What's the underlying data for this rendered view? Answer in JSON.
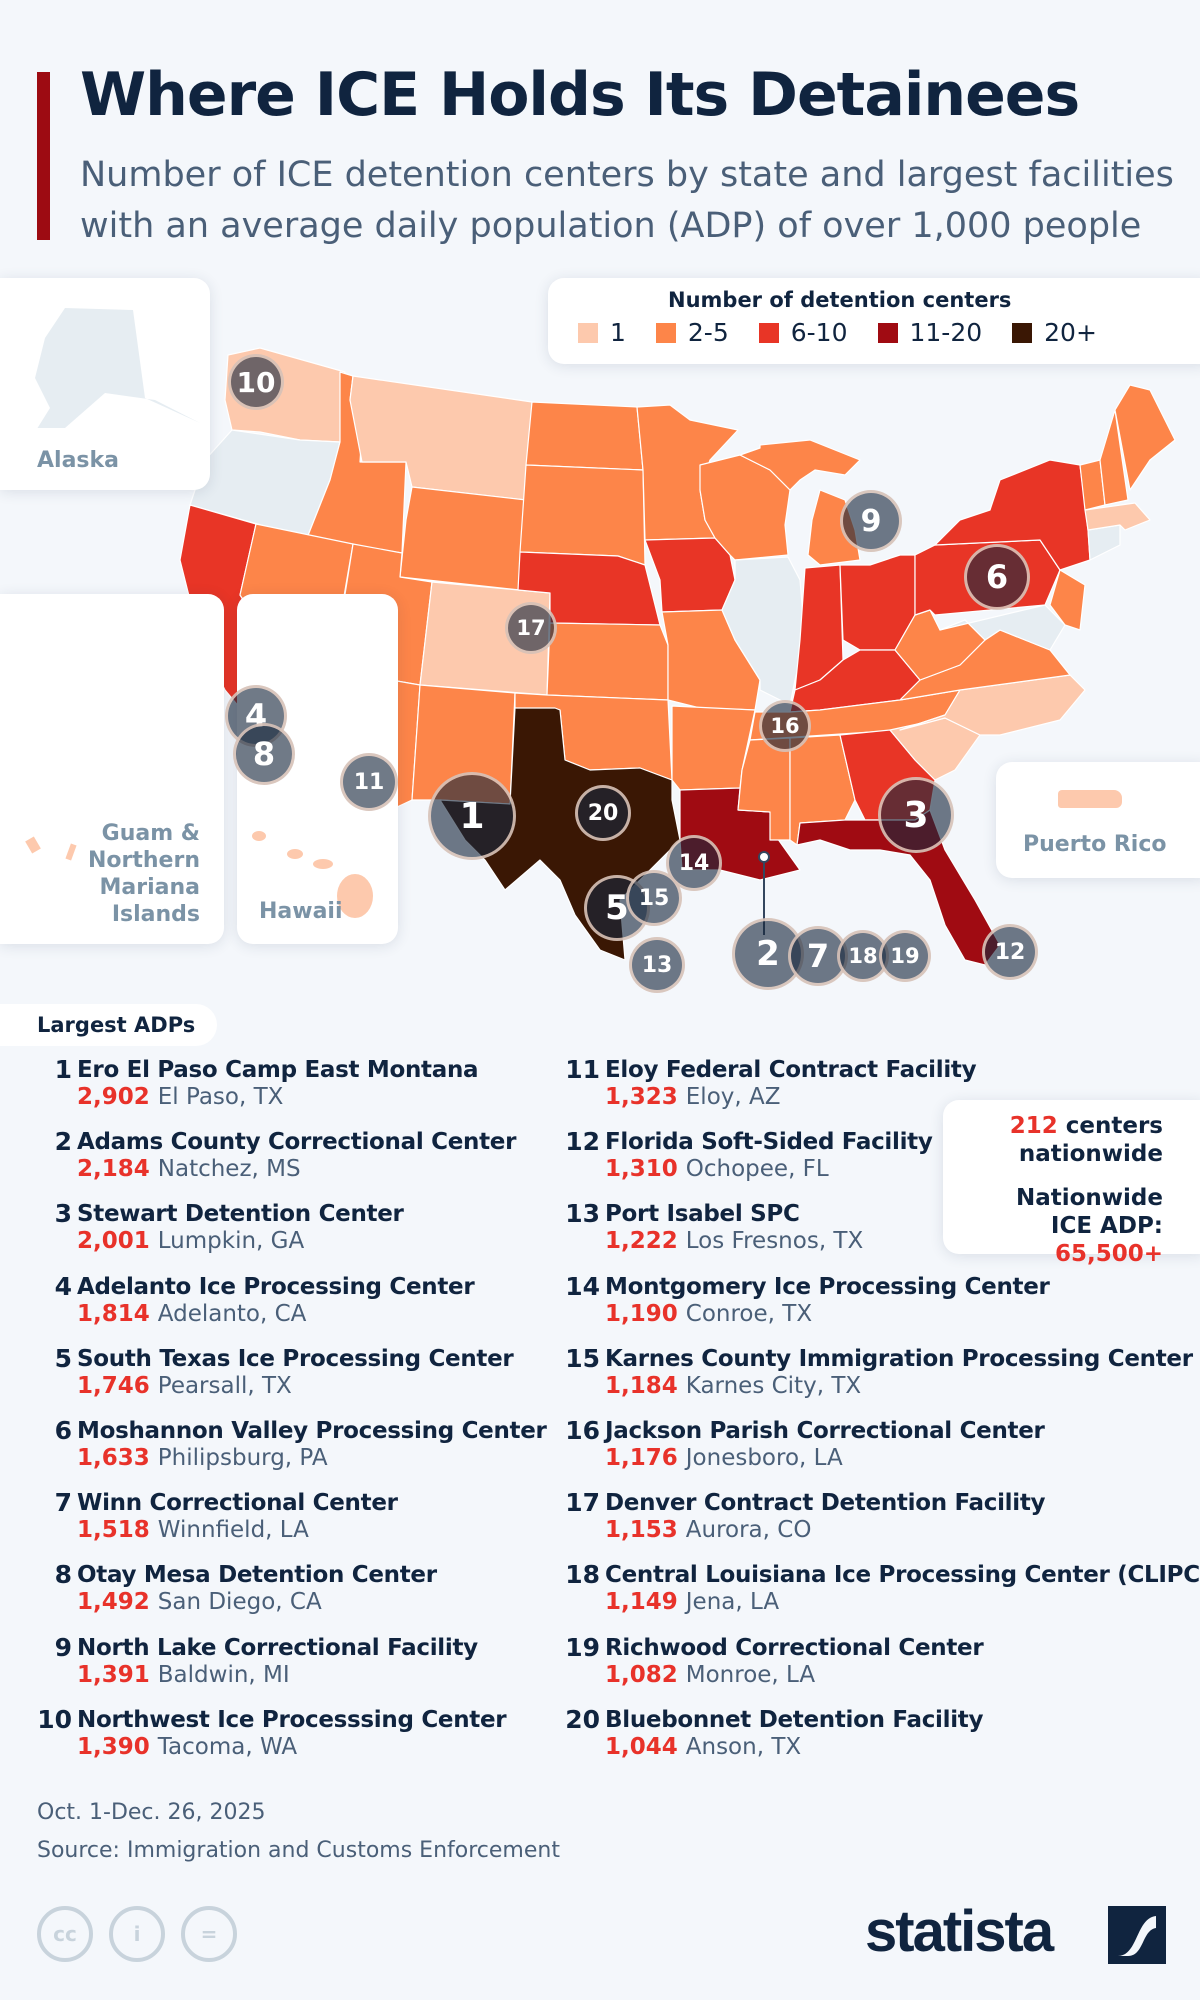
{
  "header": {
    "title": "Where ICE Holds Its Detainees",
    "subtitle": "Number of ICE detention centers by state and largest facilities with an average daily population (ADP) of over 1,000 people"
  },
  "legend": {
    "title": "Number of detention centers",
    "items": [
      {
        "label": "1",
        "color": "#fdc9ad"
      },
      {
        "label": "2-5",
        "color": "#fd8549"
      },
      {
        "label": "6-10",
        "color": "#e83526"
      },
      {
        "label": "11-20",
        "color": "#a00b12"
      },
      {
        "label": "20+",
        "color": "#3a1704"
      }
    ],
    "no_data_color": "#e6edf2"
  },
  "insets": {
    "alaska": "Alaska",
    "guam": "Guam & Northern Mariana Islands",
    "hawaii": "Hawaii",
    "puerto_rico": "Puerto Rico"
  },
  "map_markers": [
    "1",
    "2",
    "3",
    "4",
    "5",
    "6",
    "7",
    "8",
    "9",
    "10",
    "11",
    "12",
    "13",
    "14",
    "15",
    "16",
    "17",
    "18",
    "19",
    "20"
  ],
  "list": {
    "title": "Largest ADPs",
    "items": [
      {
        "rank": "1",
        "name": "Ero El Paso Camp East Montana",
        "adp": "2,902",
        "location": "El Paso, TX"
      },
      {
        "rank": "2",
        "name": "Adams County Correctional Center",
        "adp": "2,184",
        "location": "Natchez, MS"
      },
      {
        "rank": "3",
        "name": "Stewart Detention Center",
        "adp": "2,001",
        "location": "Lumpkin, GA"
      },
      {
        "rank": "4",
        "name": "Adelanto Ice Processing Center",
        "adp": "1,814",
        "location": "Adelanto, CA"
      },
      {
        "rank": "5",
        "name": "South Texas Ice Processing Center",
        "adp": "1,746",
        "location": "Pearsall, TX"
      },
      {
        "rank": "6",
        "name": "Moshannon Valley Processing Center",
        "adp": "1,633",
        "location": "Philipsburg, PA"
      },
      {
        "rank": "7",
        "name": "Winn Correctional Center",
        "adp": "1,518",
        "location": "Winnfield, LA"
      },
      {
        "rank": "8",
        "name": "Otay Mesa Detention Center",
        "adp": "1,492",
        "location": "San Diego, CA"
      },
      {
        "rank": "9",
        "name": "North Lake Correctional Facility",
        "adp": "1,391",
        "location": "Baldwin, MI"
      },
      {
        "rank": "10",
        "name": "Northwest Ice Processsing Center",
        "adp": "1,390",
        "location": "Tacoma, WA"
      },
      {
        "rank": "11",
        "name": "Eloy Federal Contract Facility",
        "adp": "1,323",
        "location": "Eloy, AZ"
      },
      {
        "rank": "12",
        "name": "Florida Soft-Sided Facility",
        "adp": "1,310",
        "location": "Ochopee, FL"
      },
      {
        "rank": "13",
        "name": "Port Isabel SPC",
        "adp": "1,222",
        "location": "Los Fresnos, TX"
      },
      {
        "rank": "14",
        "name": "Montgomery Ice Processing Center",
        "adp": "1,190",
        "location": "Conroe, TX"
      },
      {
        "rank": "15",
        "name": "Karnes County Immigration Processing Center",
        "adp": "1,184",
        "location": "Karnes City, TX"
      },
      {
        "rank": "16",
        "name": "Jackson Parish Correctional Center",
        "adp": "1,176",
        "location": "Jonesboro, LA"
      },
      {
        "rank": "17",
        "name": "Denver Contract Detention Facility",
        "adp": "1,153",
        "location": "Aurora, CO"
      },
      {
        "rank": "18",
        "name": "Central Louisiana Ice Processing Center (CLIPC)",
        "adp": "1,149",
        "location": "Jena, LA"
      },
      {
        "rank": "19",
        "name": "Richwood Correctional Center",
        "adp": "1,082",
        "location": "Monroe, LA"
      },
      {
        "rank": "20",
        "name": "Bluebonnet Detention Facility",
        "adp": "1,044",
        "location": "Anson, TX"
      }
    ]
  },
  "summary": {
    "centers_value": "212",
    "centers_label": "centers",
    "centers_label2": "nationwide",
    "adp_label1": "Nationwide",
    "adp_label2": "ICE ADP:",
    "adp_value": "65,500+"
  },
  "footer": {
    "date": "Oct. 1-Dec. 26, 2025",
    "source": "Source: Immigration and Customs Enforcement",
    "brand": "statista",
    "license_icons": [
      "cc-icon",
      "attribution-icon",
      "no-derivatives-icon"
    ]
  },
  "chart_data": {
    "type": "choropleth-map",
    "title": "Where ICE Holds Its Detainees",
    "subtitle": "Number of ICE detention centers by state and largest facilities with an average daily population (ADP) of over 1,000 people",
    "legend_title": "Number of detention centers",
    "bins": [
      "1",
      "2-5",
      "6-10",
      "11-20",
      "20+"
    ],
    "states_by_bin": {
      "none": [
        "OR",
        "IL",
        "CT",
        "MD",
        "DE"
      ],
      "1": [
        "WA",
        "MT",
        "CO",
        "NC",
        "SC",
        "MA",
        "PR",
        "HI",
        "Guam & N. Mariana Is."
      ],
      "2-5": [
        "ID",
        "NV",
        "UT",
        "WY",
        "ND",
        "SD",
        "MN",
        "WI",
        "MI",
        "AZ",
        "NM",
        "OK",
        "KS",
        "MO",
        "AR",
        "MS",
        "AL",
        "TN",
        "WV",
        "VA",
        "NJ",
        "ME",
        "VT",
        "NH"
      ],
      "6-10": [
        "CA",
        "NE",
        "IA",
        "IN",
        "OH",
        "KY",
        "PA",
        "NY",
        "GA"
      ],
      "11-20": [
        "LA",
        "FL"
      ],
      "20+": [
        "TX"
      ]
    },
    "facilities_adp": [
      2902,
      2184,
      2001,
      1814,
      1746,
      1633,
      1518,
      1492,
      1391,
      1390,
      1323,
      1310,
      1222,
      1190,
      1184,
      1176,
      1153,
      1149,
      1082,
      1044
    ],
    "total_centers": 212,
    "nationwide_adp": "65,500+"
  }
}
